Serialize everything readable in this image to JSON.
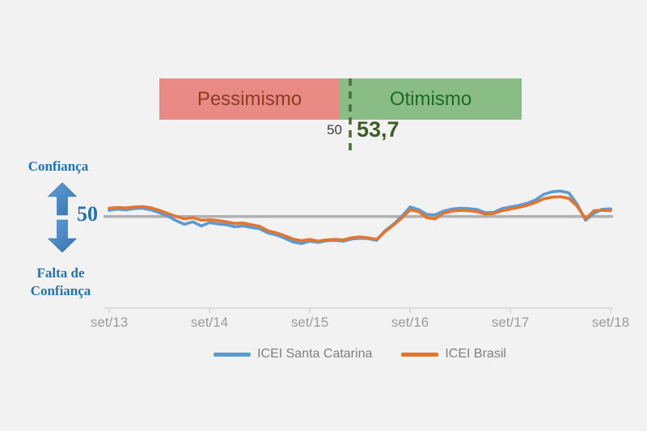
{
  "colors": {
    "background": "#F2F2F2",
    "pessimism_bar": "#E98B84",
    "pessimism_text": "#8E3A25",
    "optimism_bar": "#8ABC86",
    "optimism_text": "#1F692B",
    "divider_dashed": "#4D7036",
    "current_value_text": "#3D5C26",
    "annotation_blue": "#2273B4",
    "baseline_gray": "#B1B1B1",
    "axis_gray": "#DCDCDC",
    "tick_label_gray": "#9B9B9B",
    "legend_text_gray": "#7F7F7F"
  },
  "gauge": {
    "pessimism_label": "Pessimismo",
    "optimism_label": "Otimismo",
    "threshold_label": "50",
    "current_value_label": "53,7"
  },
  "y_annotation": {
    "top_label": "Confiança",
    "mid_label": "50",
    "bottom_label_line1": "Falta de",
    "bottom_label_line2": "Confiança"
  },
  "chart_data": {
    "type": "line",
    "title": "",
    "x_start": "set/13",
    "x_end": "set/18",
    "x_frequency": "monthly",
    "x_tick_labels": [
      "set/13",
      "set/14",
      "set/15",
      "set/16",
      "set/17",
      "set/18"
    ],
    "baseline_value": 50,
    "baseline_color": "#B1B1B1",
    "ylim_estimated": [
      34,
      64
    ],
    "grid": false,
    "legend_position": "bottom",
    "series": [
      {
        "name": "ICEI Santa Catarina",
        "color": "#5B9BD5",
        "values": [
          53.0,
          53.6,
          53.2,
          53.8,
          54.0,
          53.2,
          51.8,
          50.2,
          48.0,
          46.2,
          47.4,
          45.4,
          47.0,
          46.4,
          46.0,
          45.0,
          45.4,
          44.6,
          44.0,
          42.0,
          41.0,
          39.4,
          37.6,
          36.8,
          38.0,
          37.4,
          38.2,
          38.4,
          38.0,
          39.0,
          39.4,
          39.2,
          38.4,
          43.0,
          46.2,
          50.0,
          54.6,
          53.4,
          51.0,
          50.8,
          52.6,
          53.6,
          54.0,
          53.8,
          53.4,
          51.8,
          52.0,
          53.8,
          54.6,
          55.4,
          56.4,
          58.0,
          60.8,
          62.0,
          62.4,
          61.5,
          56.0,
          48.2,
          51.5,
          53.5,
          53.7
        ]
      },
      {
        "name": "ICEI Brasil",
        "color": "#E4752E",
        "values": [
          54.0,
          54.4,
          54.2,
          54.6,
          54.8,
          54.2,
          53.0,
          51.5,
          50.0,
          48.8,
          49.4,
          48.2,
          48.4,
          48.0,
          47.4,
          46.6,
          46.8,
          46.0,
          45.2,
          43.0,
          42.0,
          40.6,
          39.0,
          38.2,
          38.8,
          38.0,
          38.6,
          38.8,
          38.6,
          39.6,
          40.0,
          39.6,
          38.8,
          42.6,
          45.8,
          49.2,
          53.2,
          52.4,
          49.4,
          48.8,
          51.6,
          52.6,
          53.0,
          52.8,
          52.4,
          51.2,
          51.4,
          52.8,
          53.6,
          54.4,
          55.4,
          56.8,
          58.6,
          59.4,
          59.6,
          58.8,
          55.0,
          48.8,
          52.8,
          53.0,
          52.8
        ]
      }
    ]
  }
}
